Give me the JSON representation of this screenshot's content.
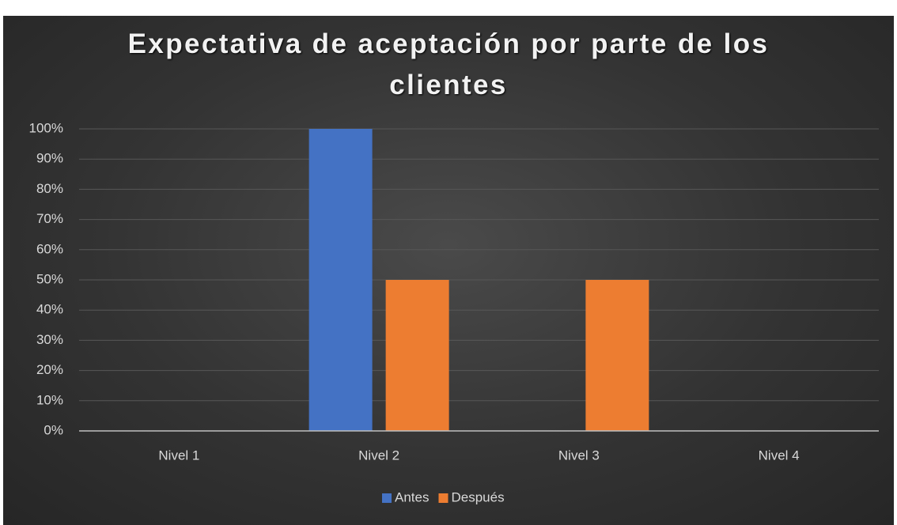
{
  "chart_data": {
    "type": "bar",
    "title": "Expectativa de aceptación por parte de los clientes",
    "categories": [
      "Nivel 1",
      "Nivel 2",
      "Nivel 3",
      "Nivel 4"
    ],
    "series": [
      {
        "name": "Antes",
        "color": "#4472c4",
        "values": [
          0,
          100,
          0,
          0
        ]
      },
      {
        "name": "Después",
        "color": "#ed7d31",
        "values": [
          0,
          50,
          50,
          0
        ]
      }
    ],
    "ylim": [
      0,
      100
    ],
    "yticks": [
      {
        "value": 0,
        "label": "0%"
      },
      {
        "value": 10,
        "label": "10%"
      },
      {
        "value": 20,
        "label": "20%"
      },
      {
        "value": 30,
        "label": "30%"
      },
      {
        "value": 40,
        "label": "40%"
      },
      {
        "value": 50,
        "label": "50%"
      },
      {
        "value": 60,
        "label": "60%"
      },
      {
        "value": 70,
        "label": "70%"
      },
      {
        "value": 80,
        "label": "80%"
      },
      {
        "value": 90,
        "label": "90%"
      },
      {
        "value": 100,
        "label": "100%"
      }
    ],
    "grid": true,
    "legend": "bottom"
  }
}
